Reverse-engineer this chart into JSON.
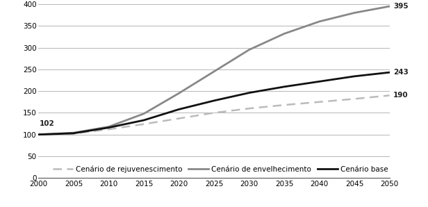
{
  "years": [
    2000,
    2005,
    2010,
    2015,
    2020,
    2025,
    2030,
    2035,
    2040,
    2045,
    2050
  ],
  "cenario_envelhecimento": [
    100,
    104,
    118,
    148,
    195,
    245,
    295,
    332,
    360,
    380,
    395
  ],
  "cenario_base": [
    100,
    103,
    116,
    133,
    158,
    178,
    196,
    210,
    222,
    234,
    243
  ],
  "cenario_rejuvenescimento": [
    100,
    102,
    112,
    124,
    137,
    150,
    160,
    168,
    175,
    182,
    190
  ],
  "label_envelhecimento": "Cenário de envelhecimento",
  "label_base": "Cenário base",
  "label_rejuvenescimento": "Cenário de rejuvenescimento",
  "color_envelhecimento": "#888888",
  "color_base": "#111111",
  "color_rejuvenescimento": "#bbbbbb",
  "ylim": [
    0,
    400
  ],
  "xlim": [
    2000,
    2050
  ],
  "yticks": [
    0,
    50,
    100,
    150,
    200,
    250,
    300,
    350,
    400
  ],
  "xticks": [
    2000,
    2005,
    2010,
    2015,
    2020,
    2025,
    2030,
    2035,
    2040,
    2045,
    2050
  ],
  "annotation_102": "102",
  "annotation_395": "395",
  "annotation_243": "243",
  "annotation_190": "190",
  "bg_color": "#ffffff",
  "grid_color": "#aaaaaa",
  "spine_color": "#555555"
}
